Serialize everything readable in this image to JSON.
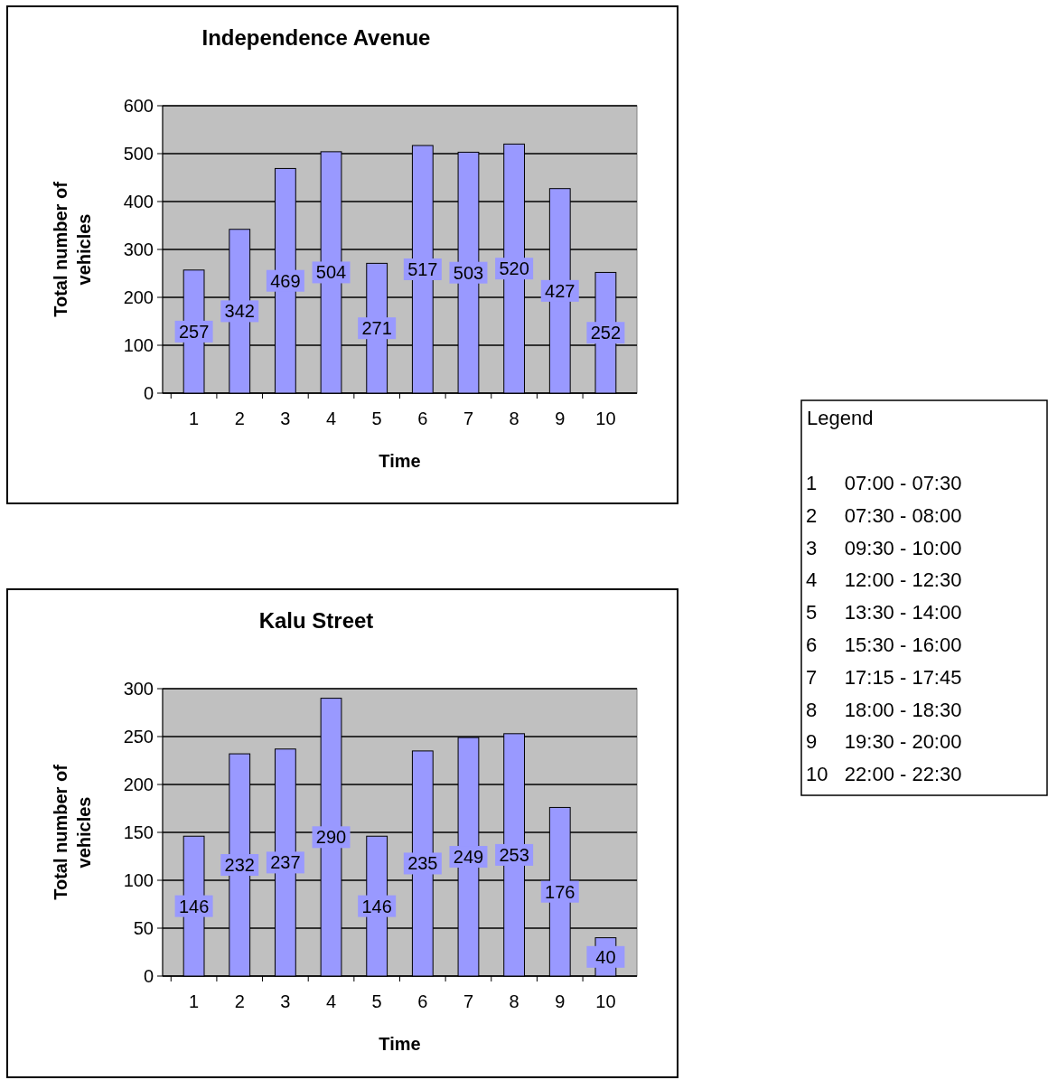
{
  "chart_data": [
    {
      "type": "bar",
      "title": "Independence Avenue",
      "xlabel": "Time",
      "ylabel": "Total number of vehicles",
      "categories": [
        "1",
        "2",
        "3",
        "4",
        "5",
        "6",
        "7",
        "8",
        "9",
        "10"
      ],
      "values": [
        257,
        342,
        469,
        504,
        271,
        517,
        503,
        520,
        427,
        252
      ],
      "color": "#9999ff",
      "ylim": [
        0,
        600
      ],
      "yticks": [
        0,
        100,
        200,
        300,
        400,
        500,
        600
      ],
      "grid": "y",
      "data_labels": true
    },
    {
      "type": "bar",
      "title": "Kalu Street",
      "xlabel": "Time",
      "ylabel": "Total number of vehicles",
      "categories": [
        "1",
        "2",
        "3",
        "4",
        "5",
        "6",
        "7",
        "8",
        "9",
        "10"
      ],
      "values": [
        146,
        232,
        237,
        290,
        146,
        235,
        249,
        253,
        176,
        40
      ],
      "color": "#9999ff",
      "ylim": [
        0,
        300
      ],
      "yticks": [
        0,
        50,
        100,
        150,
        200,
        250,
        300
      ],
      "grid": "y",
      "data_labels": true
    },
    {
      "type": "other",
      "title": "Legend",
      "annotations": [
        "1 07:00 - 07:30",
        "2 07:30 - 08:00",
        "3 09:30 - 10:00",
        "4 12:00 - 12:30",
        "5 13:30 - 14:00",
        "6 15:30 - 16:00",
        "7 17:15 - 17:45",
        "8 18:00 - 18:30",
        "9 19:30 - 20:00",
        "10 22:00 - 22:30"
      ]
    }
  ]
}
